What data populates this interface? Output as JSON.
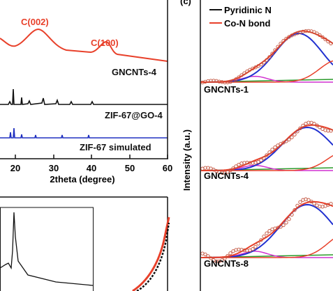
{
  "panel_b": {
    "labels": {
      "peak1": "C(002)",
      "peak2": "C(100)",
      "curve1": "GNCNTs-4",
      "curve2": "ZIF-67@GO-4",
      "curve3": "ZIF-67 simulated"
    },
    "xticks": [
      "20",
      "30",
      "40",
      "50",
      "60"
    ],
    "xlabel": "2theta (degree)"
  },
  "panel_c": {
    "tag": "(c)",
    "legend": [
      "Pyridinic N",
      "Co-N bond"
    ],
    "ylabel": "Intensity (a.u.)",
    "samples": [
      "GNCNTs-1",
      "GNCNTs-4",
      "GNCNTs-8"
    ]
  }
}
